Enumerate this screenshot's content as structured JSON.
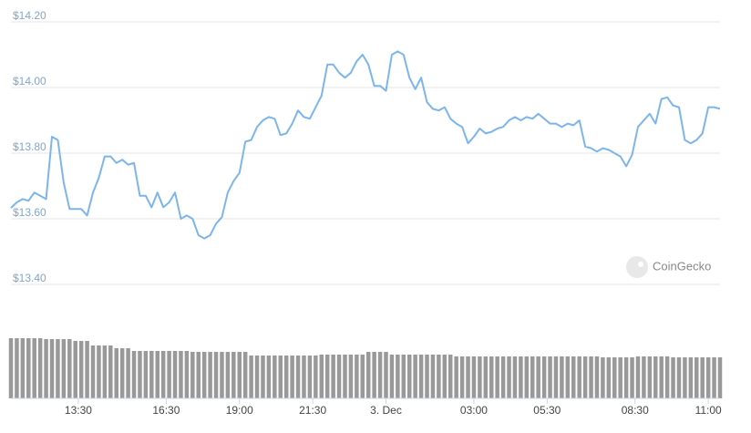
{
  "chart_data": {
    "type": "line",
    "watermark": "CoinGecko",
    "color": "#7cb5ec",
    "volume_color": "#999999",
    "grid": true,
    "xlim": [
      0,
      121
    ],
    "xticks": [
      {
        "value": 11.5,
        "label": "13:30"
      },
      {
        "value": 26.5,
        "label": "16:30"
      },
      {
        "value": 39,
        "label": "19:00"
      },
      {
        "value": 51.5,
        "label": "21:30"
      },
      {
        "value": 64,
        "label": "3. Dec"
      },
      {
        "value": 79,
        "label": "03:00"
      },
      {
        "value": 91.5,
        "label": "05:30"
      },
      {
        "value": 106.5,
        "label": "08:30"
      },
      {
        "value": 119,
        "label": "11:00"
      }
    ],
    "ylim": [
      13.4,
      14.2
    ],
    "yticks": [
      {
        "value": 14.2,
        "label": "$14.20"
      },
      {
        "value": 14.0,
        "label": "$14.00"
      },
      {
        "value": 13.8,
        "label": "$13.80"
      },
      {
        "value": 13.6,
        "label": "$13.60"
      },
      {
        "value": 13.4,
        "label": "$13.40"
      }
    ],
    "vlim": [
      0,
      70
    ],
    "values": [
      13.633,
      13.65,
      13.66,
      13.655,
      13.68,
      13.67,
      13.66,
      13.85,
      13.84,
      13.71,
      13.63,
      13.63,
      13.63,
      13.61,
      13.68,
      13.725,
      13.79,
      13.79,
      13.77,
      13.78,
      13.765,
      13.77,
      13.67,
      13.67,
      13.635,
      13.68,
      13.635,
      13.65,
      13.68,
      13.6,
      13.61,
      13.6,
      13.55,
      13.54,
      13.55,
      13.585,
      13.605,
      13.68,
      13.715,
      13.74,
      13.835,
      13.84,
      13.88,
      13.9,
      13.91,
      13.905,
      13.855,
      13.86,
      13.89,
      13.93,
      13.91,
      13.905,
      13.94,
      13.975,
      14.07,
      14.07,
      14.045,
      14.03,
      14.045,
      14.08,
      14.1,
      14.07,
      14.005,
      14.005,
      13.99,
      14.1,
      14.11,
      14.1,
      14.03,
      13.995,
      14.03,
      13.955,
      13.935,
      13.93,
      13.94,
      13.905,
      13.89,
      13.88,
      13.83,
      13.85,
      13.875,
      13.86,
      13.865,
      13.875,
      13.88,
      13.9,
      13.91,
      13.9,
      13.91,
      13.905,
      13.92,
      13.905,
      13.89,
      13.89,
      13.88,
      13.89,
      13.885,
      13.9,
      13.82,
      13.815,
      13.805,
      13.815,
      13.81,
      13.8,
      13.79,
      13.76,
      13.795,
      13.88,
      13.9,
      13.92,
      13.89,
      13.965,
      13.97,
      13.945,
      13.94,
      13.84,
      13.83,
      13.84,
      13.86,
      13.94,
      13.94,
      13.935
    ],
    "volumes": [
      66,
      66,
      66,
      66,
      66,
      66,
      65,
      65,
      65,
      65,
      65,
      63,
      63,
      63,
      58,
      58,
      58,
      58,
      55,
      55,
      55,
      52,
      52,
      52,
      52,
      52,
      52,
      52,
      52,
      52,
      52,
      51,
      51,
      51,
      51,
      51,
      51,
      51,
      51,
      51,
      51,
      47,
      47,
      47,
      47,
      47,
      47,
      47,
      47,
      47,
      47,
      47,
      47,
      48,
      48,
      48,
      48,
      48,
      48,
      48,
      48,
      51,
      51,
      51,
      51,
      48,
      48,
      48,
      48,
      48,
      48,
      48,
      48,
      48,
      48,
      48,
      46,
      46,
      46,
      46,
      46,
      46,
      46,
      46,
      46,
      46,
      46,
      46,
      46,
      46,
      46,
      46,
      46,
      46,
      46,
      46,
      46,
      46,
      46,
      46,
      46,
      45,
      45,
      45,
      45,
      45,
      45,
      46,
      46,
      46,
      46,
      46,
      46,
      45,
      45,
      45,
      45,
      45,
      45,
      45,
      45,
      45
    ]
  }
}
